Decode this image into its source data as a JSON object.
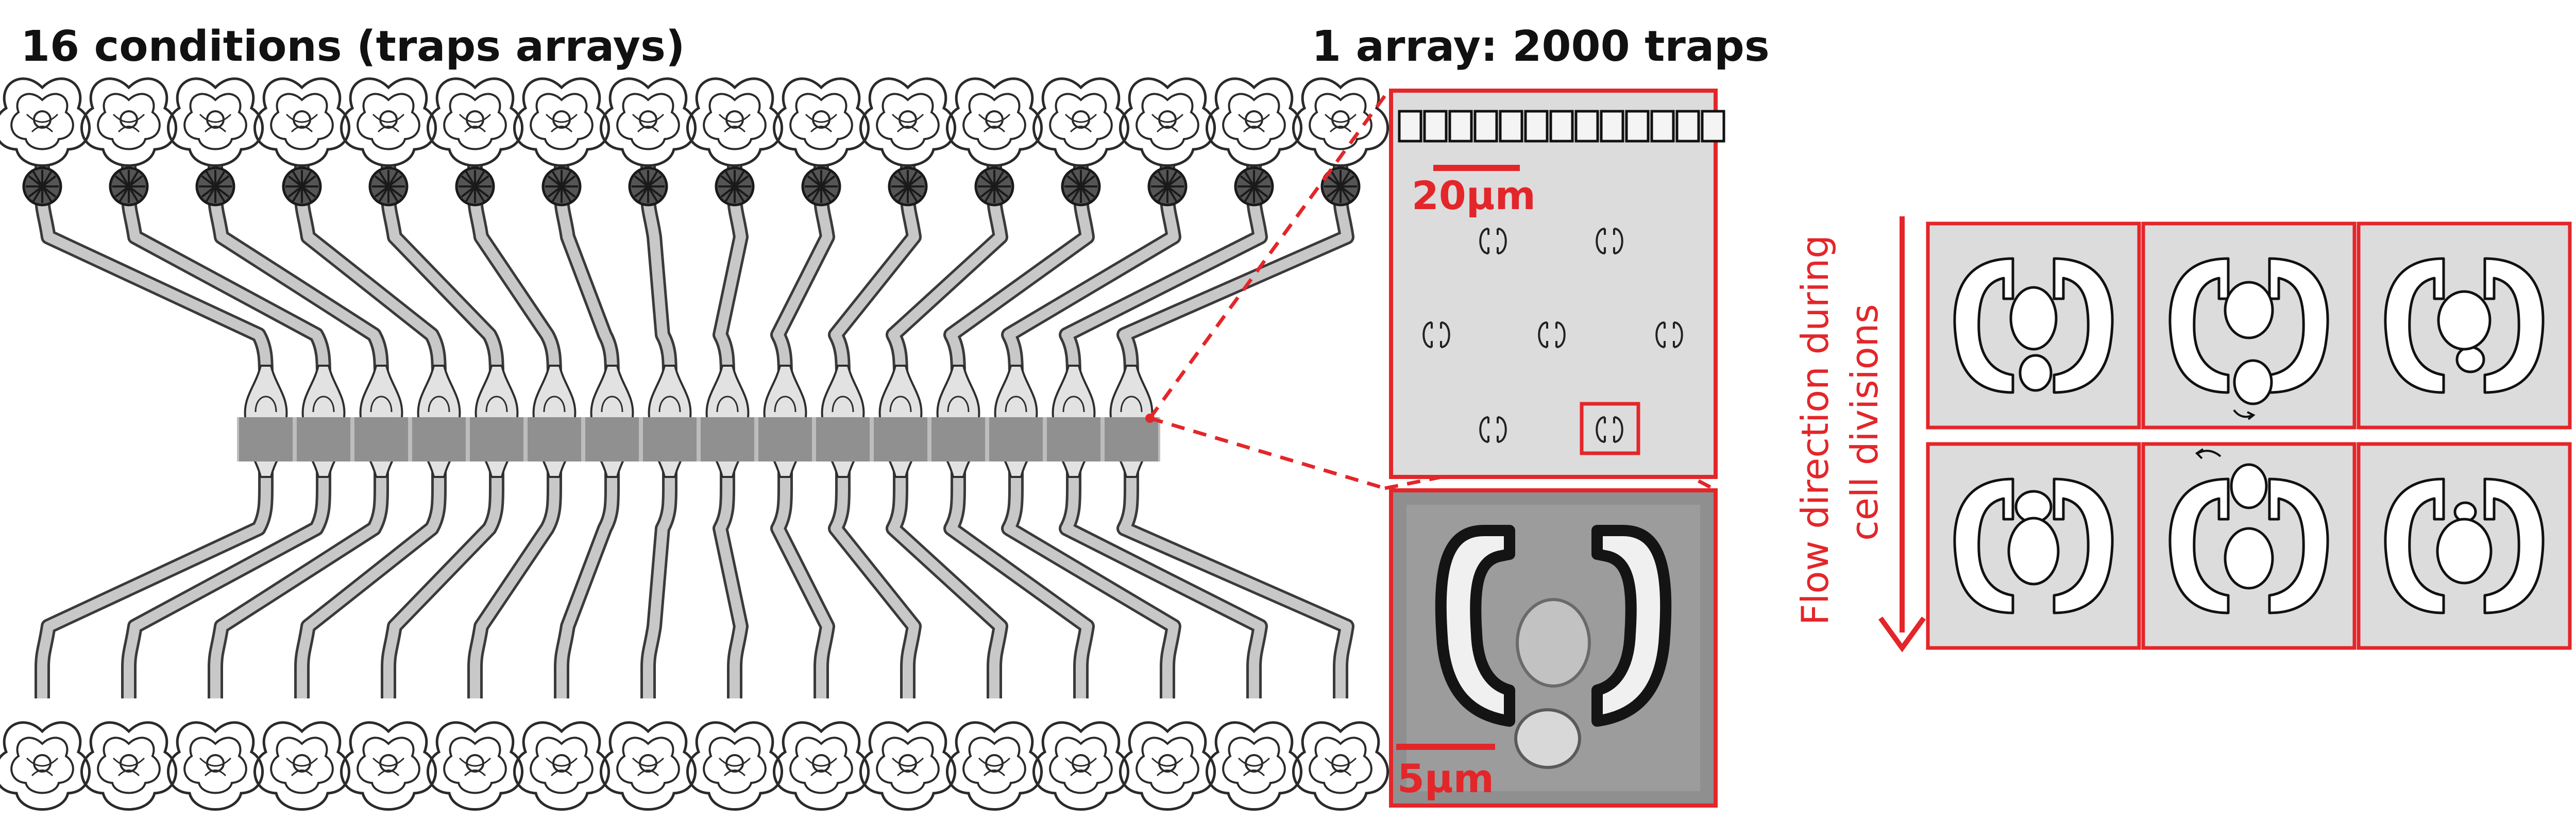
{
  "header": {
    "left_title": "16 conditions (traps arrays)",
    "right_title": "1 array: 2000 traps"
  },
  "device": {
    "conditions_count": 16
  },
  "zoom_array": {
    "scale_label": "20µm",
    "top_row_squares": 13
  },
  "micrograph": {
    "scale_label": "5µm"
  },
  "flow": {
    "label_line1": "Flow direction during",
    "label_line2": "cell divisions"
  },
  "colors": {
    "accent": "#e3262a",
    "channel_fill": "#c8c8c8",
    "chamber_fill": "#909090",
    "panel_fill": "#dcdcdc",
    "text": "#111111"
  }
}
